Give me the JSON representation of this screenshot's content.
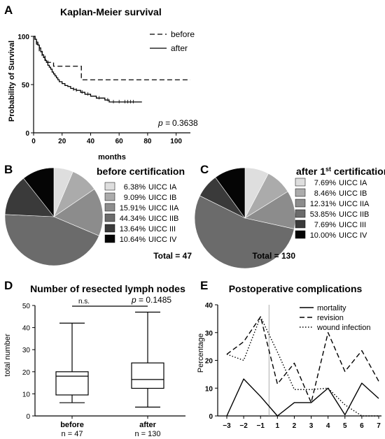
{
  "chart_data": [
    {
      "panel": "A",
      "type": "line",
      "title": "Kaplan-Meier survival",
      "xlabel": "months",
      "ylabel": "Probability of Survival",
      "xlim": [
        0,
        110
      ],
      "ylim": [
        0,
        100
      ],
      "xticks": [
        "0",
        "20",
        "40",
        "60",
        "80",
        "100"
      ],
      "yticks": [
        "0",
        "50",
        "100"
      ],
      "p_label": "p =",
      "p_value": "0.3638",
      "series": [
        {
          "name": "before",
          "style": "dashed",
          "x": [
            0,
            1,
            2,
            4,
            6,
            8,
            10,
            14,
            33,
            33.5,
            110
          ],
          "y": [
            100,
            96,
            92,
            85,
            80,
            76,
            73,
            69,
            69,
            55,
            55
          ]
        },
        {
          "name": "after",
          "style": "solid",
          "x": [
            0,
            1,
            2,
            3,
            4,
            5,
            6,
            7,
            8,
            9,
            10,
            11,
            12,
            13,
            14,
            15,
            16,
            17,
            18,
            20,
            22,
            24,
            26,
            28,
            30,
            33,
            36,
            40,
            44,
            50,
            53,
            62,
            76
          ],
          "y": [
            100,
            97,
            94,
            91,
            88,
            84,
            81,
            78,
            75,
            73,
            70,
            68,
            66,
            63,
            61,
            59,
            57,
            55,
            53,
            51,
            49,
            48,
            46,
            45,
            44,
            42,
            40,
            38,
            36,
            34,
            32,
            32,
            32
          ]
        }
      ]
    },
    {
      "panel": "B",
      "type": "pie",
      "title": "before certification",
      "total": "Total = 47",
      "slices": [
        {
          "pct": "6.38%",
          "label": "UICC IA",
          "value": 6.38,
          "color": "#dedede"
        },
        {
          "pct": "9.09%",
          "label": "UICC IB",
          "value": 9.09,
          "color": "#ababab"
        },
        {
          "pct": "15.91%",
          "label": "UICC IIA",
          "value": 15.91,
          "color": "#8c8c8c"
        },
        {
          "pct": "44.34%",
          "label": "UICC IIB",
          "value": 44.34,
          "color": "#6b6b6b"
        },
        {
          "pct": "13.64%",
          "label": "UICC III",
          "value": 13.64,
          "color": "#3a3a3a"
        },
        {
          "pct": "10.64%",
          "label": "UICC IV",
          "value": 10.64,
          "color": "#050505"
        }
      ]
    },
    {
      "panel": "C",
      "type": "pie",
      "title_main": "after 1",
      "title_sup": "st",
      "title_rest": " certification",
      "total": "Total = 130",
      "slices": [
        {
          "pct": "7.69%",
          "label": "UICC IA",
          "value": 7.69,
          "color": "#dedede"
        },
        {
          "pct": "8.46%",
          "label": "UICC IB",
          "value": 8.46,
          "color": "#ababab"
        },
        {
          "pct": "12.31%",
          "label": "UICC IIA",
          "value": 12.31,
          "color": "#8c8c8c"
        },
        {
          "pct": "53.85%",
          "label": "UICC IIB",
          "value": 53.85,
          "color": "#6b6b6b"
        },
        {
          "pct": "7.69%",
          "label": "UICC III",
          "value": 7.69,
          "color": "#3a3a3a"
        },
        {
          "pct": "10.00%",
          "label": "UICC IV",
          "value": 10.0,
          "color": "#050505"
        }
      ]
    },
    {
      "panel": "D",
      "type": "box",
      "title": "Number of resected lymph nodes",
      "ylabel": "total number",
      "ylim": [
        0,
        50
      ],
      "yticks": [
        "0",
        "10",
        "20",
        "30",
        "40",
        "50"
      ],
      "sig_label": "n.s.",
      "p_label": "p",
      "p_value": " = 0.1485",
      "groups": [
        {
          "name": "before",
          "n": "n = 47",
          "min": 6,
          "q1": 9.5,
          "median": 18,
          "q3": 20,
          "max": 42
        },
        {
          "name": "after",
          "n": "n = 130",
          "min": 4,
          "q1": 12.5,
          "median": 16.5,
          "q3": 24,
          "max": 47
        }
      ]
    },
    {
      "panel": "E",
      "type": "line",
      "title": "Postoperative complications",
      "ylabel": "Percentage",
      "ylim": [
        0,
        40
      ],
      "yticks": [
        "0",
        "10",
        "20",
        "30",
        "40"
      ],
      "categories": [
        "−3",
        "−2",
        "−1",
        "1",
        "2",
        "3",
        "4",
        "5",
        "6",
        "7"
      ],
      "series": [
        {
          "name": "mortality",
          "style": "solid",
          "values": [
            0,
            13.3,
            7,
            0,
            4.8,
            4.8,
            10,
            0.4,
            11.8,
            6.3
          ]
        },
        {
          "name": "revision",
          "style": "dashed",
          "values": [
            22.2,
            26.7,
            35.7,
            11.5,
            19,
            4.8,
            30,
            16,
            23.5,
            12.5
          ]
        },
        {
          "name": "wound infection",
          "style": "dotted",
          "values": [
            22.2,
            20,
            35.7,
            23,
            9.5,
            9.5,
            10,
            4,
            0,
            0
          ]
        }
      ]
    }
  ]
}
